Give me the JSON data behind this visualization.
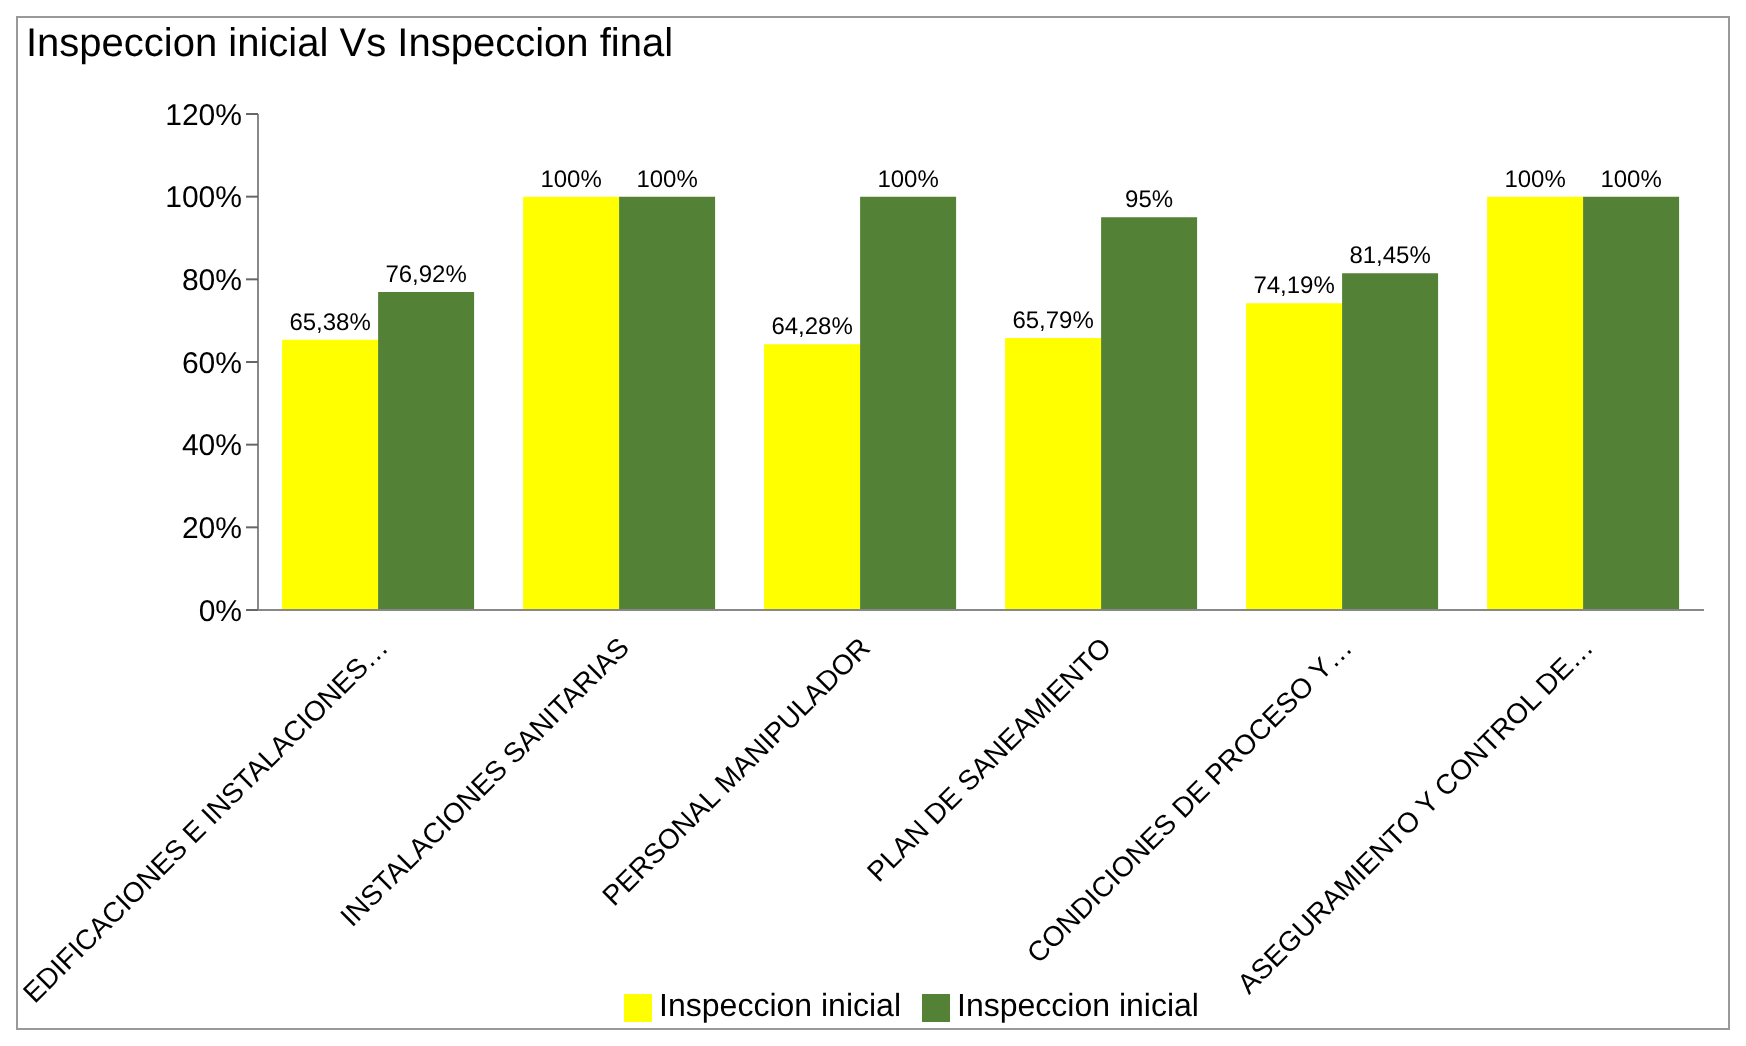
{
  "chart_data": {
    "type": "bar",
    "title": "Inspeccion inicial Vs Inspeccion final",
    "categories": [
      "EDIFICACIONES E INSTALACIONES…",
      "INSTALACIONES SANITARIAS",
      "PERSONAL MANIPULADOR",
      "PLAN DE SANEAMIENTO",
      "CONDICIONES DE PROCESO Y…",
      "ASEGURAMIENTO Y CONTROL DE…"
    ],
    "series": [
      {
        "name": "Inspeccion inicial",
        "color": "#ffff00",
        "values": [
          65.38,
          100,
          64.28,
          65.79,
          74.19,
          100
        ],
        "value_labels": [
          "65,38%",
          "100%",
          "64,28%",
          "65,79%",
          "74,19%",
          "100%"
        ]
      },
      {
        "name": "Inspeccion inicial",
        "color": "#538135",
        "values": [
          76.92,
          100,
          100,
          95,
          81.45,
          100
        ],
        "value_labels": [
          "76,92%",
          "100%",
          "100%",
          "95%",
          "81,45%",
          "100%"
        ]
      }
    ],
    "ylim": [
      0,
      120
    ],
    "yticks": [
      {
        "value": 0,
        "label": "0%"
      },
      {
        "value": 20,
        "label": "20%"
      },
      {
        "value": 40,
        "label": "40%"
      },
      {
        "value": 60,
        "label": "60%"
      },
      {
        "value": 80,
        "label": "80%"
      },
      {
        "value": 100,
        "label": "100%"
      },
      {
        "value": 120,
        "label": "120%"
      }
    ],
    "grid": false,
    "legend": "bottom"
  }
}
